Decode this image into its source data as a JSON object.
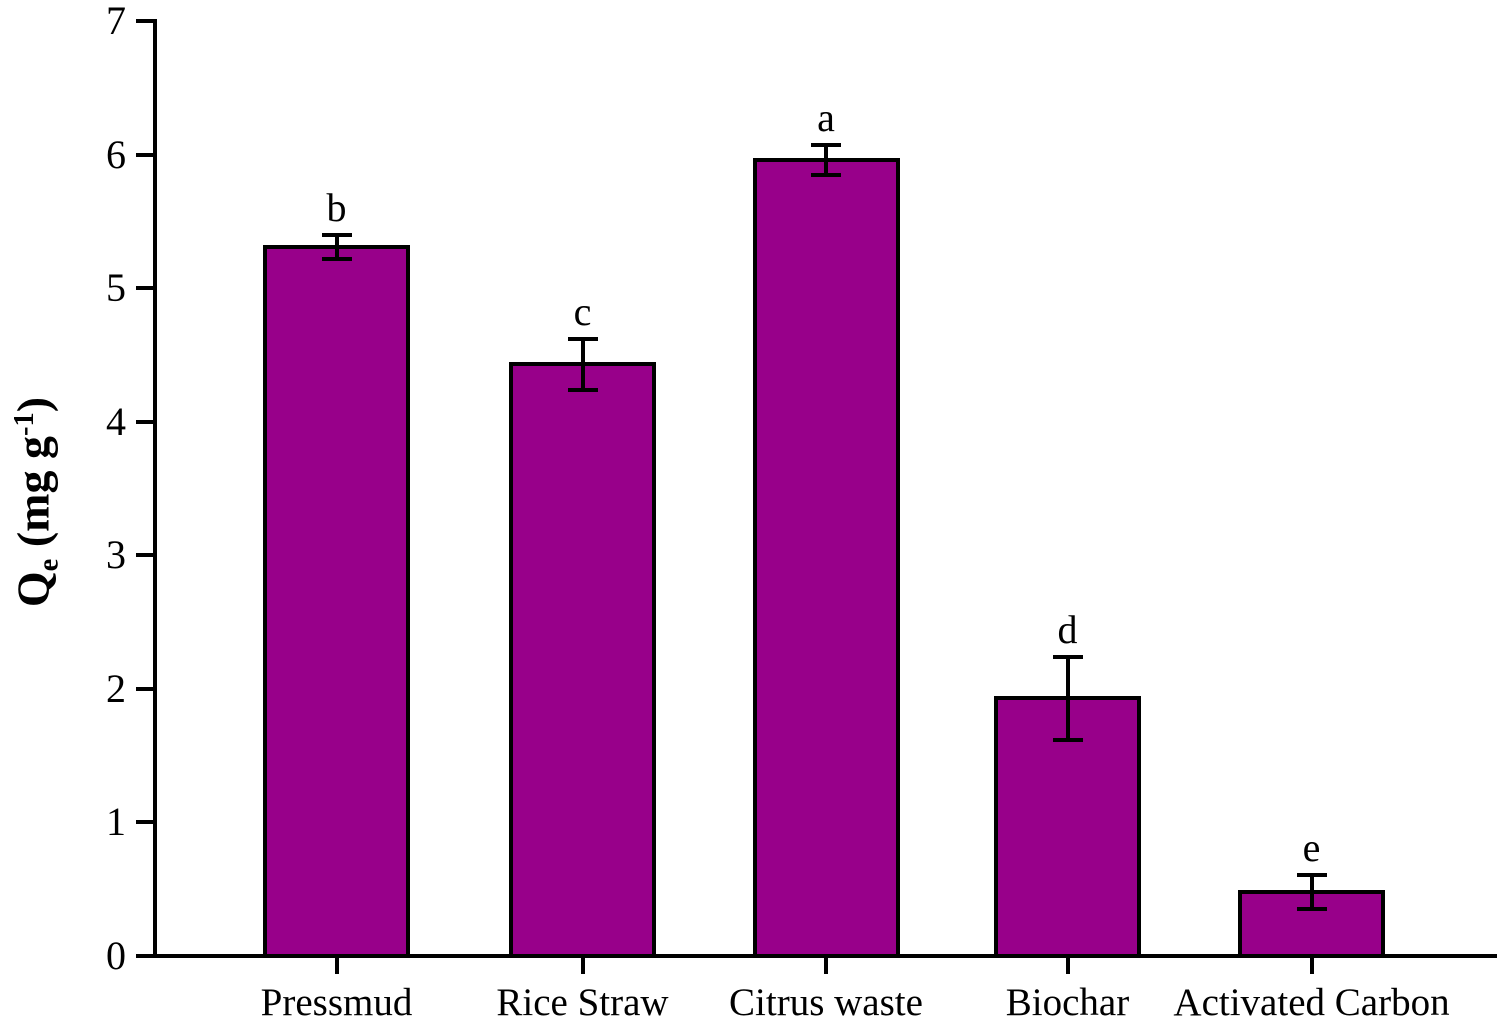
{
  "figure": {
    "background_color": "#ffffff",
    "axis_color": "#000000",
    "text_color": "#000000"
  },
  "chart_data": {
    "type": "bar",
    "title": "",
    "xlabel": "",
    "ylabel": "Qe (mg g-1)",
    "ylabel_rich": {
      "base": "Q",
      "subscript": "e",
      "middle": " (mg g",
      "superscript": "-1",
      "end": ")"
    },
    "ylim": [
      0,
      7
    ],
    "ytick_labels": [
      "0",
      "1",
      "2",
      "3",
      "4",
      "5",
      "6",
      "7"
    ],
    "ytick_values": [
      0,
      1,
      2,
      3,
      4,
      5,
      6,
      7
    ],
    "grid": false,
    "legend": null,
    "categories": [
      "Pressmud",
      "Rice Straw",
      "Citrus waste",
      "Biochar",
      "Activated Carbon"
    ],
    "values": [
      5.31,
      4.43,
      5.96,
      1.93,
      0.48
    ],
    "errors": [
      0.09,
      0.19,
      0.11,
      0.31,
      0.13
    ],
    "significance_letters": [
      "b",
      "c",
      "a",
      "d",
      "e"
    ],
    "bar_color": "#98008A",
    "bar_border_color": "#000000",
    "error_bar_color": "#000000"
  }
}
